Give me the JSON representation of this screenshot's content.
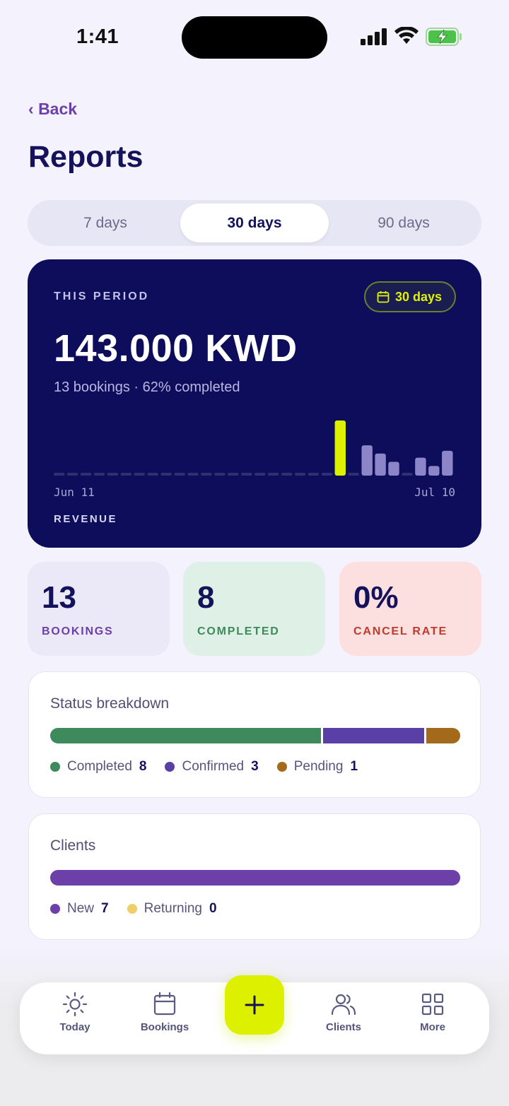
{
  "status_bar": {
    "time": "1:41"
  },
  "header": {
    "back_label": "Back",
    "title": "Reports"
  },
  "range_tabs": [
    {
      "label": "7 days",
      "active": false
    },
    {
      "label": "30 days",
      "active": true
    },
    {
      "label": "90 days",
      "active": false
    }
  ],
  "revenue_card": {
    "period_label": "THIS PERIOD",
    "range_pill": "30 days",
    "amount": "143.000 KWD",
    "subtitle": "13 bookings · 62% completed",
    "start_date": "Jun 11",
    "end_date": "Jul 10",
    "chart_label": "REVENUE"
  },
  "chart_data": {
    "type": "bar",
    "values": [
      0,
      0,
      0,
      0,
      0,
      0,
      0,
      0,
      0,
      0,
      0,
      0,
      0,
      0,
      0,
      0,
      0,
      0,
      0,
      0,
      0,
      40,
      0,
      22,
      16,
      10,
      0,
      13,
      7,
      18
    ],
    "highlight_index": 21,
    "colors": {
      "highlight": "#dcf000",
      "normal": "#8c86c8",
      "empty": "#2f2f72"
    }
  },
  "stats": [
    {
      "value": "13",
      "label": "BOOKINGS",
      "bg": "#ebe8f8",
      "color": "#6d3fa8"
    },
    {
      "value": "8",
      "label": "COMPLETED",
      "bg": "#dff0e6",
      "color": "#3d8a5a"
    },
    {
      "value": "0%",
      "label": "CANCEL RATE",
      "bg": "#fbe0df",
      "color": "#c0392b"
    }
  ],
  "status_breakdown": {
    "title": "Status breakdown",
    "items": [
      {
        "label": "Completed",
        "value": "8",
        "color": "#3f8a5c"
      },
      {
        "label": "Confirmed",
        "value": "3",
        "color": "#5a3fa6"
      },
      {
        "label": "Pending",
        "value": "1",
        "color": "#a46a1c"
      }
    ]
  },
  "clients": {
    "title": "Clients",
    "items": [
      {
        "label": "New",
        "value": "7",
        "color": "#6d3fa8"
      },
      {
        "label": "Returning",
        "value": "0",
        "color": "#f0cf6a"
      }
    ]
  },
  "nav": {
    "items": [
      {
        "label": "Today",
        "icon": "sun-icon"
      },
      {
        "label": "Bookings",
        "icon": "calendar-icon"
      },
      {
        "label": "Clients",
        "icon": "users-icon"
      },
      {
        "label": "More",
        "icon": "grid-icon"
      }
    ],
    "fab_icon": "plus-icon"
  }
}
